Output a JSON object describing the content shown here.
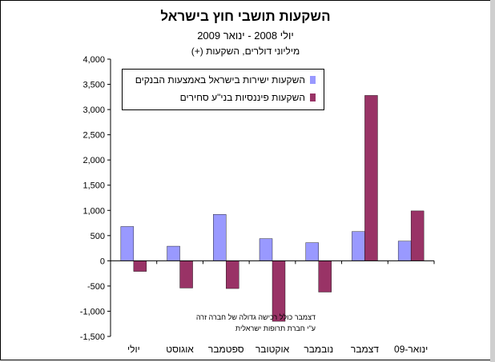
{
  "header": {
    "title": "השקעות תושבי חוץ בישראל",
    "subtitle": "יולי 2008 - ינואר 2009",
    "units": "מיליוני דולרים, השקעות (+)"
  },
  "notes": [
    "דצמבר כולל רכישה גדולה של חברה זרה",
    "ע\"י חברת תרופות ישראלית"
  ],
  "chart_data": {
    "type": "bar",
    "categories": [
      "יולי",
      "אוגוסט",
      "ספטמבר",
      "אוקטובר",
      "נובמבר",
      "דצמבר",
      "ינואר-09"
    ],
    "series": [
      {
        "name": "השקעות ישירות בישראל באמצעות הבנקים",
        "color": "#9999ff",
        "values": [
          680,
          290,
          920,
          440,
          360,
          580,
          390
        ]
      },
      {
        "name": "השקעות פיננסיות בני\"ע סחירים",
        "color": "#993366",
        "values": [
          -210,
          -540,
          -550,
          -1200,
          -620,
          3280,
          990
        ]
      }
    ],
    "ylim": [
      -1500,
      4000
    ],
    "yticks": [
      -1500,
      -1000,
      -500,
      0,
      500,
      1000,
      1500,
      2000,
      2500,
      3000,
      3500,
      4000
    ],
    "ytick_labels": [
      "-1,500",
      "-1,000",
      "-500",
      "0",
      "500",
      "1,000",
      "1,500",
      "2,000",
      "2,500",
      "3,000",
      "3,500",
      "4,000"
    ],
    "grid": false,
    "legend_position": "top-left"
  }
}
